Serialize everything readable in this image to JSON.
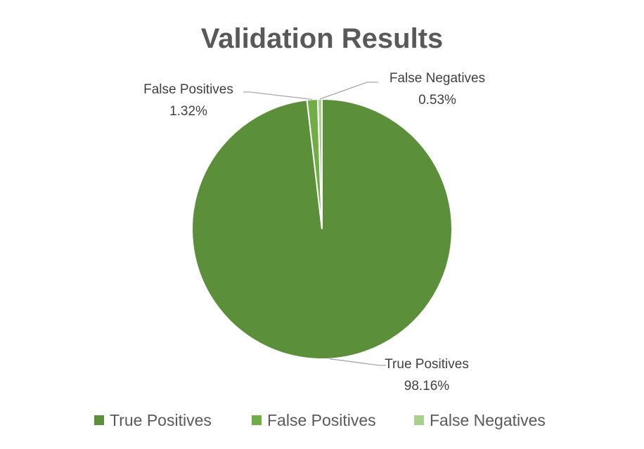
{
  "chart_data": {
    "type": "pie",
    "title": "Validation Results",
    "categories": [
      "True Positives",
      "False Positives",
      "False Negatives"
    ],
    "values": [
      98.16,
      1.32,
      0.53
    ],
    "value_labels": [
      "98.16%",
      "1.32%",
      "0.53%"
    ],
    "colors": [
      "#5b8f3a",
      "#70ad47",
      "#a9d18e"
    ],
    "start_angle_deg": 0,
    "direction": "clockwise",
    "legend_position": "bottom"
  }
}
